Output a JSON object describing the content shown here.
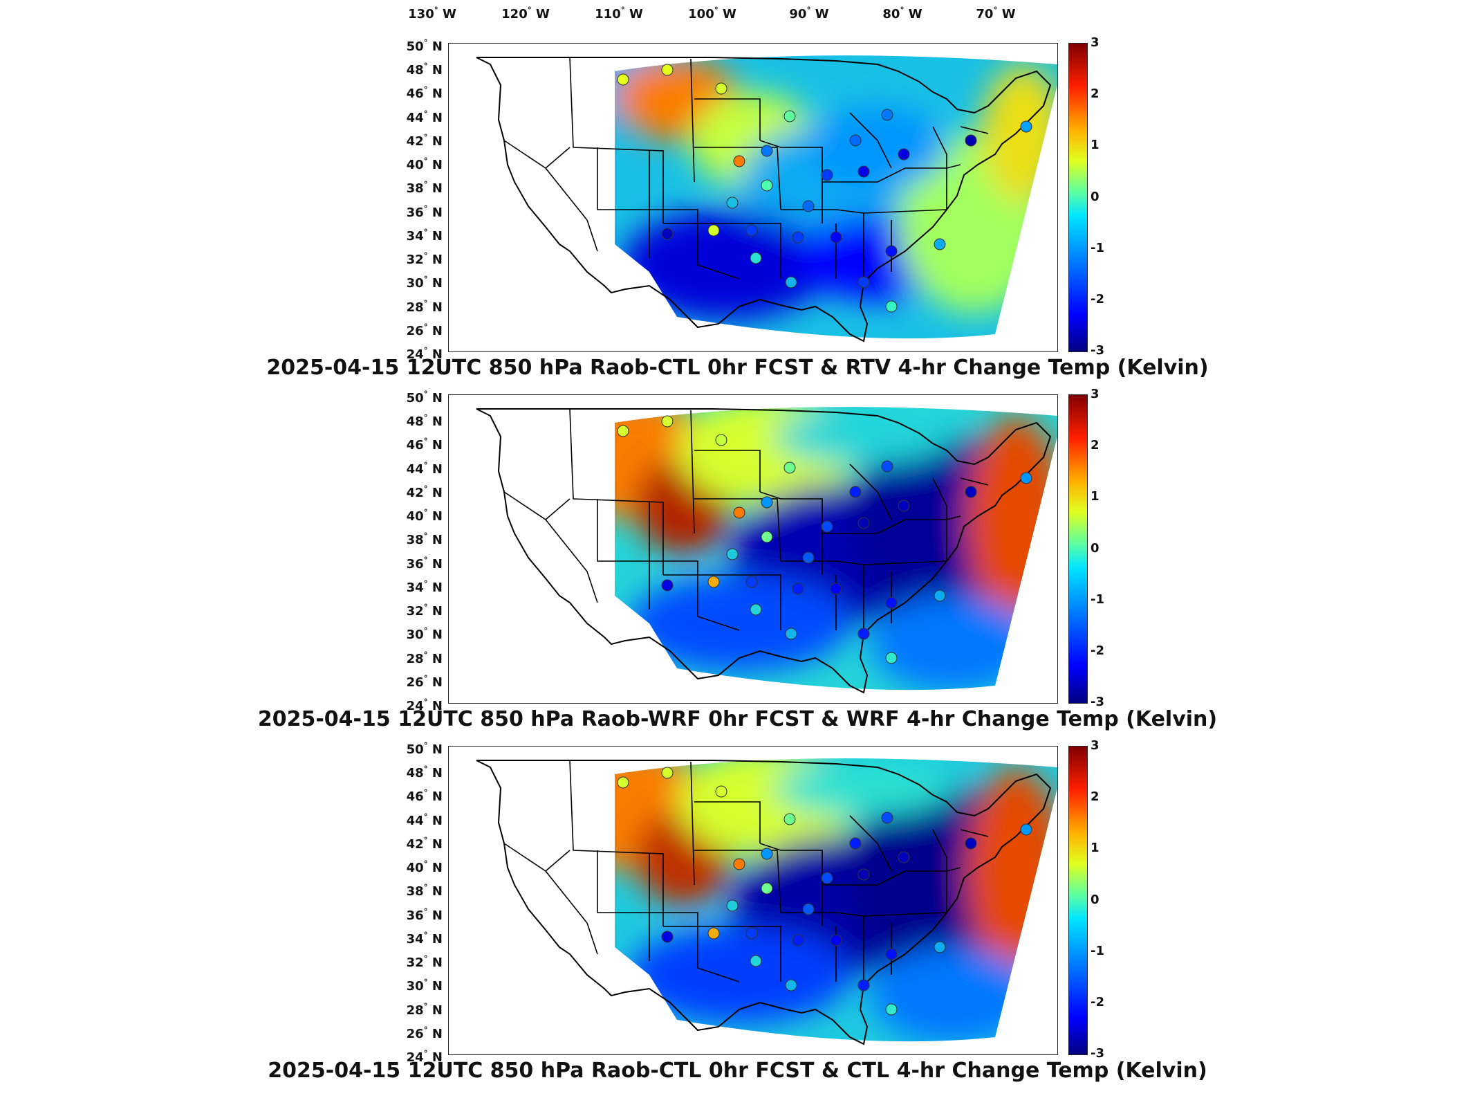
{
  "longitude_labels": [
    "130",
    "120",
    "110",
    "100",
    "90",
    "80",
    "70"
  ],
  "longitude_suffix": "W",
  "latitude_labels": [
    "50",
    "48",
    "46",
    "44",
    "42",
    "40",
    "38",
    "36",
    "34",
    "32",
    "30",
    "28",
    "26",
    "24"
  ],
  "latitude_suffix": "N",
  "colorbar_ticks": [
    "3",
    "2",
    "1",
    "0",
    "-1",
    "-2",
    "-3"
  ],
  "panels": [
    {
      "title": "2025-04-15 12UTC 850 hPa Raob-CTL 0hr FCST & RTV 4-hr Change Temp (Kelvin)"
    },
    {
      "title": "2025-04-15 12UTC 850 hPa Raob-WRF 0hr FCST & WRF 4-hr Change Temp (Kelvin)"
    },
    {
      "title": "2025-04-15 12UTC 850 hPa Raob-CTL 0hr FCST & CTL 4-hr Change Temp (Kelvin)"
    }
  ],
  "colors": {
    "c_-3": "#00007f",
    "c_-2": "#0000ff",
    "c_-1": "#00a0ff",
    "c_0": "#40ffc0",
    "c_1": "#e0ff20",
    "c_2": "#ff6000",
    "c_3": "#800000"
  }
}
